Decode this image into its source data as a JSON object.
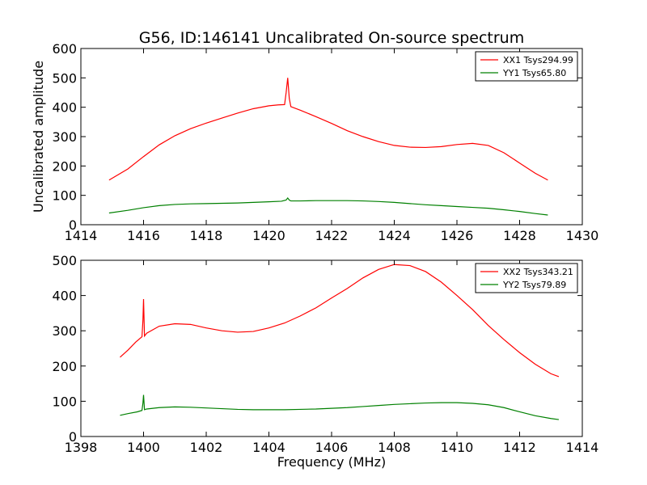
{
  "chart_data": [
    {
      "type": "line",
      "title": "G56, ID:146141 Uncalibrated On-source spectrum",
      "xlabel": "",
      "ylabel": "Uncalibrated amplitude",
      "xlim": [
        1414,
        1430
      ],
      "ylim": [
        0,
        600
      ],
      "xticks": [
        1414,
        1416,
        1418,
        1420,
        1422,
        1424,
        1426,
        1428,
        1430
      ],
      "yticks": [
        0,
        100,
        200,
        300,
        400,
        500,
        600
      ],
      "legend_position": "top-right",
      "series": [
        {
          "name": "XX1 Tsys294.99",
          "color": "#ff0000",
          "x": [
            1414.9,
            1415.5,
            1416,
            1416.5,
            1417,
            1417.5,
            1418,
            1418.5,
            1419,
            1419.5,
            1420,
            1420.3,
            1420.5,
            1420.55,
            1420.6,
            1420.65,
            1420.7,
            1421,
            1421.5,
            1422,
            1422.5,
            1423,
            1423.5,
            1424,
            1424.5,
            1425,
            1425.5,
            1426,
            1426.5,
            1427,
            1427.5,
            1428,
            1428.5,
            1428.9
          ],
          "y": [
            152,
            190,
            232,
            272,
            303,
            327,
            346,
            363,
            380,
            395,
            405,
            408,
            409,
            450,
            500,
            430,
            402,
            390,
            368,
            345,
            320,
            300,
            283,
            270,
            264,
            263,
            266,
            273,
            277,
            270,
            245,
            210,
            175,
            152
          ]
        },
        {
          "name": "YY1 Tsys65.80",
          "color": "#008000",
          "x": [
            1414.9,
            1415.5,
            1416,
            1416.5,
            1417,
            1417.5,
            1418,
            1418.5,
            1419,
            1419.5,
            1420,
            1420.4,
            1420.55,
            1420.6,
            1420.65,
            1420.7,
            1421,
            1421.5,
            1422,
            1422.5,
            1423,
            1423.5,
            1424,
            1424.5,
            1425,
            1425.5,
            1426,
            1426.5,
            1427,
            1427.5,
            1428,
            1428.5,
            1428.9
          ],
          "y": [
            40,
            49,
            58,
            65,
            69,
            71,
            72,
            73,
            74,
            76,
            78,
            80,
            84,
            91,
            84,
            81,
            81,
            82,
            82,
            82,
            81,
            79,
            76,
            72,
            68,
            65,
            62,
            59,
            56,
            51,
            45,
            38,
            33
          ]
        }
      ]
    },
    {
      "type": "line",
      "title": "",
      "xlabel": "Frequency (MHz)",
      "ylabel": "",
      "xlim": [
        1398,
        1414
      ],
      "ylim": [
        0,
        500
      ],
      "xticks": [
        1398,
        1400,
        1402,
        1404,
        1406,
        1408,
        1410,
        1412,
        1414
      ],
      "yticks": [
        0,
        100,
        200,
        300,
        400,
        500
      ],
      "legend_position": "top-right",
      "series": [
        {
          "name": "XX2 Tsys343.21",
          "color": "#ff0000",
          "x": [
            1399.25,
            1399.5,
            1399.75,
            1399.95,
            1399.98,
            1400.0,
            1400.03,
            1400.1,
            1400.5,
            1401,
            1401.5,
            1402,
            1402.5,
            1403,
            1403.5,
            1404,
            1404.5,
            1405,
            1405.5,
            1406,
            1406.5,
            1407,
            1407.5,
            1408,
            1408.5,
            1409,
            1409.5,
            1410,
            1410.5,
            1411,
            1411.5,
            1412,
            1412.5,
            1413,
            1413.25
          ],
          "y": [
            225,
            245,
            268,
            283,
            330,
            390,
            285,
            293,
            313,
            320,
            318,
            308,
            300,
            296,
            298,
            308,
            322,
            342,
            365,
            393,
            420,
            450,
            474,
            488,
            485,
            468,
            438,
            400,
            360,
            315,
            275,
            238,
            205,
            178,
            170
          ]
        },
        {
          "name": "YY2 Tsys79.89",
          "color": "#008000",
          "x": [
            1399.25,
            1399.5,
            1399.8,
            1399.95,
            1399.98,
            1400.0,
            1400.03,
            1400.1,
            1400.5,
            1401,
            1401.5,
            1402,
            1402.5,
            1403,
            1403.5,
            1404,
            1404.5,
            1405,
            1405.5,
            1406,
            1406.5,
            1407,
            1407.5,
            1408,
            1408.5,
            1409,
            1409.5,
            1410,
            1410.5,
            1411,
            1411.5,
            1412,
            1412.5,
            1413,
            1413.25
          ],
          "y": [
            60,
            65,
            70,
            74,
            95,
            118,
            76,
            78,
            82,
            84,
            83,
            81,
            79,
            77,
            76,
            76,
            76,
            77,
            78,
            80,
            82,
            85,
            88,
            91,
            93,
            95,
            96,
            96,
            94,
            90,
            82,
            70,
            59,
            51,
            48
          ]
        }
      ]
    }
  ]
}
